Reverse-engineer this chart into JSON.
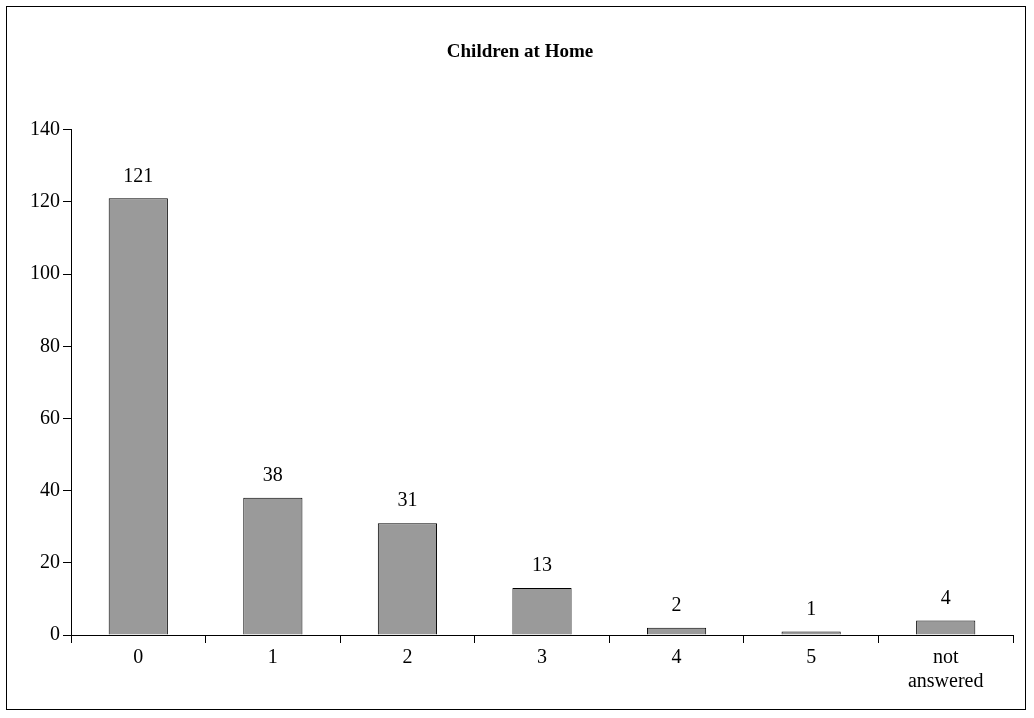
{
  "chart_data": {
    "type": "bar",
    "title": "Children at Home",
    "categories": [
      "0",
      "1",
      "2",
      "3",
      "4",
      "5",
      "not answered"
    ],
    "values": [
      121,
      38,
      31,
      13,
      2,
      1,
      4
    ],
    "color": "#9a9a9a",
    "ylim": [
      0,
      140
    ],
    "yticks": [
      0,
      20,
      40,
      60,
      80,
      100,
      120,
      140
    ],
    "data_labels": true,
    "grid": false,
    "legend": false
  }
}
